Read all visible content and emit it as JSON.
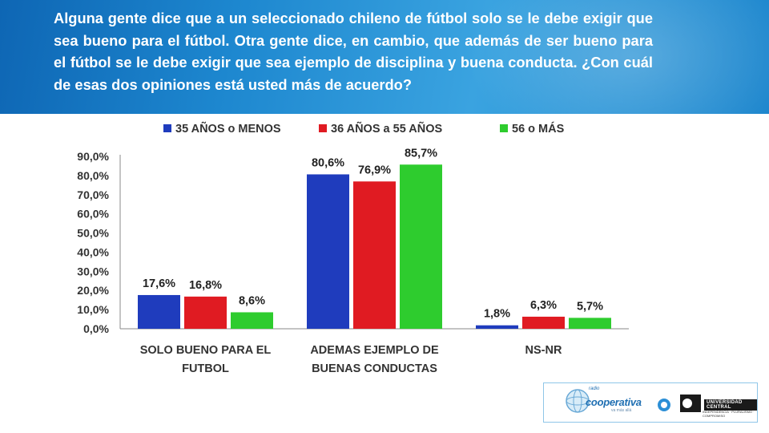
{
  "question": "Alguna gente dice que a un seleccionado chileno de fútbol solo se le debe exigir que sea bueno para el fútbol. Otra gente dice, en cambio, que además de ser bueno para el fútbol se le debe exigir que sea ejemplo de disciplina y buena conducta. ¿Con cuál de esas dos opiniones está usted más de acuerdo?",
  "chart_data": {
    "type": "bar",
    "title": "",
    "xlabel": "",
    "ylabel": "",
    "categories": [
      [
        "SOLO BUENO PARA EL",
        "FUTBOL"
      ],
      [
        "ADEMAS EJEMPLO DE",
        "BUENAS CONDUCTAS"
      ],
      [
        "NS-NR"
      ]
    ],
    "series": [
      {
        "name": "35 AÑOS o MENOS",
        "color": "#1f3cbd",
        "values": [
          17.6,
          80.6,
          1.8
        ],
        "labels": [
          "17,6%",
          "80,6%",
          "1,8%"
        ]
      },
      {
        "name": "36 AÑOS a 55 AÑOS",
        "color": "#e01b22",
        "values": [
          16.8,
          76.9,
          6.3
        ],
        "labels": [
          "16,8%",
          "76,9%",
          "6,3%"
        ]
      },
      {
        "name": "56 o MÁS",
        "color": "#2ecc2e",
        "values": [
          8.6,
          85.7,
          5.7
        ],
        "labels": [
          "8,6%",
          "85,7%",
          "5,7%"
        ]
      }
    ],
    "ylim": [
      0,
      90
    ],
    "yticks": [
      0,
      10,
      20,
      30,
      40,
      50,
      60,
      70,
      80,
      90
    ],
    "ytick_labels": [
      "0,0%",
      "10,0%",
      "20,0%",
      "30,0%",
      "40,0%",
      "50,0%",
      "60,0%",
      "70,0%",
      "80,0%",
      "90,0%"
    ],
    "grid": false,
    "legend_position": "top"
  },
  "logos": {
    "cooperativa_small": "radio",
    "cooperativa": "cooperativa",
    "cooperativa_sub": "va más allá",
    "universidad": "UNIVERSIDAD CENTRAL",
    "universidad_sub": "INDEPENDENCIA · PLURALISMO · COMPROMISO"
  }
}
